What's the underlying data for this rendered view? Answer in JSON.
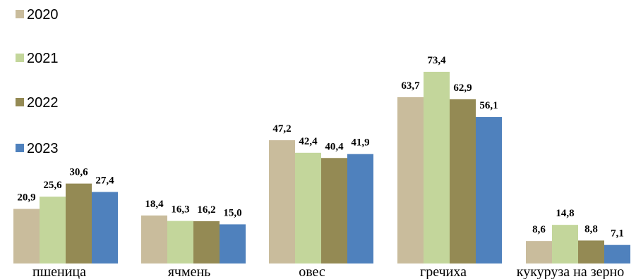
{
  "chart_data": {
    "type": "bar",
    "title": "",
    "xlabel": "",
    "ylabel": "",
    "ylim": [
      0,
      75
    ],
    "grid": false,
    "legend_position": "left",
    "categories": [
      "пшеница",
      "ячмень",
      "овес",
      "гречиха",
      "кукуруза на зерно"
    ],
    "series": [
      {
        "name": "2020",
        "color": "#c9bc9c",
        "values": [
          20.9,
          18.4,
          47.2,
          63.7,
          8.6
        ],
        "labels": [
          "20,9",
          "18,4",
          "47,2",
          "63,7",
          "8,6"
        ]
      },
      {
        "name": "2021",
        "color": "#c3d69b",
        "values": [
          25.6,
          16.3,
          42.4,
          73.4,
          14.8
        ],
        "labels": [
          "25,6",
          "16,3",
          "42,4",
          "73,4",
          "14,8"
        ]
      },
      {
        "name": "2022",
        "color": "#948a54",
        "values": [
          30.6,
          16.2,
          40.4,
          62.9,
          8.8
        ],
        "labels": [
          "30,6",
          "16,2",
          "40,4",
          "62,9",
          "8,8"
        ]
      },
      {
        "name": "2023",
        "color": "#4f81bd",
        "values": [
          27.4,
          15.0,
          41.9,
          56.1,
          7.1
        ],
        "labels": [
          "27,4",
          "15,0",
          "41,9",
          "56,1",
          "7,1"
        ]
      }
    ]
  }
}
